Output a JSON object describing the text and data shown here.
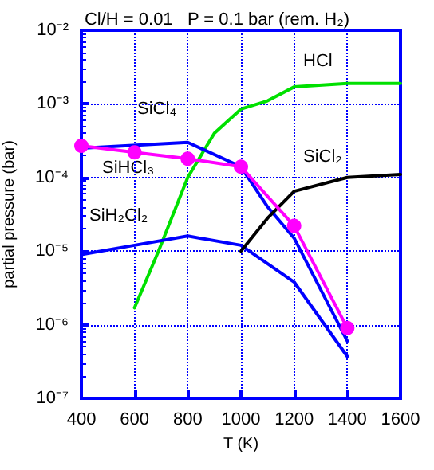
{
  "chart_data": {
    "type": "line",
    "title": "Cl/H = 0.01   P = 0.1 bar (rem. H₂)",
    "xlabel": "T (K)",
    "ylabel": "partial pressure (bar)",
    "log": "y",
    "grid": true,
    "legend": false,
    "line_style": "solid",
    "xlim": [
      400,
      1600
    ],
    "xticks": [
      400,
      600,
      800,
      1000,
      1200,
      1400,
      1600
    ],
    "ylim": [
      1e-07,
      0.01
    ],
    "yticks": [
      {
        "value": 1e-07,
        "label": "10⁻⁷"
      },
      {
        "value": 1e-06,
        "label": "10⁻⁶"
      },
      {
        "value": 1e-05,
        "label": "10⁻⁵"
      },
      {
        "value": 0.0001,
        "label": "10⁻⁴"
      },
      {
        "value": 0.001,
        "label": "10⁻³"
      },
      {
        "value": 0.01,
        "label": "10⁻²"
      }
    ],
    "series": [
      {
        "name": "HCl",
        "color": "#00e000",
        "marker": "none",
        "x": [
          600,
          690,
          800,
          900,
          1000,
          1100,
          1200,
          1400,
          1600
        ],
        "values": [
          1.7e-06,
          1e-05,
          0.0001,
          0.0004,
          0.00085,
          0.0011,
          0.0017,
          0.0019,
          0.0019
        ]
      },
      {
        "name": "SiCl₄",
        "color": "#0000ff",
        "marker": "none",
        "x": [
          400,
          800,
          1000,
          1100,
          1200,
          1400
        ],
        "values": [
          0.00025,
          0.0003,
          0.00014,
          4e-05,
          1.5e-05,
          6e-07
        ]
      },
      {
        "name": "SiHCl₃",
        "color": "#ff00ff",
        "marker": "circle",
        "x": [
          400,
          600,
          800,
          1000,
          1200,
          1400
        ],
        "values": [
          0.00027,
          0.00022,
          0.00018,
          0.00014,
          2.2e-05,
          9e-07
        ]
      },
      {
        "name": "SiH₂Cl₂",
        "color": "#0000ff",
        "marker": "none",
        "x": [
          400,
          600,
          800,
          1000,
          1200,
          1400
        ],
        "values": [
          9e-06,
          1.2e-05,
          1.6e-05,
          1.2e-05,
          3.8e-06,
          3.7e-07
        ]
      },
      {
        "name": "SiCl₂",
        "color": "#000000",
        "marker": "none",
        "x": [
          1000,
          1100,
          1200,
          1400,
          1600
        ],
        "values": [
          1e-05,
          2.8e-05,
          6.5e-05,
          0.0001,
          0.00011
        ]
      }
    ]
  }
}
